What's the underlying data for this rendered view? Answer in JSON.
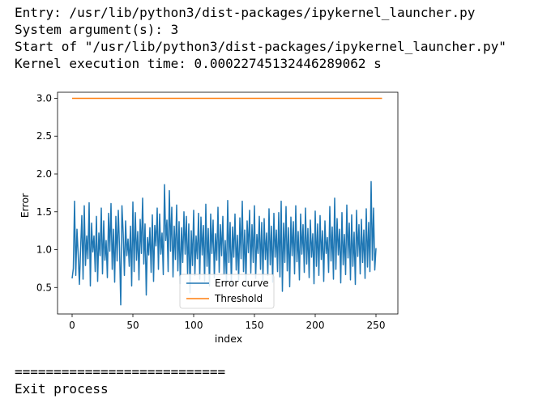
{
  "output": {
    "entry_line": "Entry: /usr/lib/python3/dist-packages/ipykernel_launcher.py",
    "args_line": "System argument(s): 3",
    "start_line": "Start of \"/usr/lib/python3/dist-packages/ipykernel_launcher.py\"",
    "time_line": "Kernel execution time: 0.00022745132446289062 s",
    "separator_line": "===========================",
    "exit_line": "Exit process"
  },
  "chart_data": {
    "type": "line",
    "xlabel": "index",
    "ylabel": "Error",
    "xlim": [
      -12,
      268
    ],
    "ylim": [
      0.15,
      3.08
    ],
    "xticks": [
      0,
      50,
      100,
      150,
      200,
      250
    ],
    "yticks": [
      0.5,
      1.0,
      1.5,
      2.0,
      2.5,
      3.0
    ],
    "xtick_labels": [
      "0",
      "50",
      "100",
      "150",
      "200",
      "250"
    ],
    "ytick_labels": [
      "0.5",
      "1.0",
      "1.5",
      "2.0",
      "2.5",
      "3.0"
    ],
    "legend_position": "lower center",
    "grid": false,
    "series": [
      {
        "name": "Error curve",
        "color": "#1f77b4",
        "x_start": 0,
        "x_step": 1,
        "values": [
          0.62,
          0.75,
          1.64,
          0.66,
          1.27,
          0.93,
          0.54,
          1.02,
          1.45,
          0.61,
          1.58,
          0.79,
          1.18,
          0.88,
          1.62,
          0.52,
          1.35,
          0.97,
          1.18,
          0.71,
          1.44,
          0.58,
          1.22,
          0.92,
          1.55,
          0.68,
          1.38,
          0.86,
          1.12,
          0.63,
          1.48,
          0.98,
          1.61,
          0.74,
          1.27,
          0.57,
          1.44,
          0.85,
          1.52,
          1.02,
          0.27,
          1.58,
          1.22,
          0.66,
          1.38,
          0.92,
          1.14,
          0.78,
          1.31,
          0.52,
          1.63,
          0.71,
          1.49,
          0.86,
          1.24,
          0.6,
          1.4,
          0.95,
          1.68,
          0.81,
          1.34,
          0.4,
          1.16,
          0.93,
          1.29,
          0.7,
          1.46,
          0.58,
          1.32,
          1.05,
          1.55,
          0.74,
          1.47,
          0.94,
          1.22,
          0.67,
          1.86,
          1.12,
          1.39,
          0.71,
          1.78,
          0.98,
          1.56,
          0.64,
          1.31,
          0.87,
          1.59,
          0.72,
          1.37,
          0.55,
          1.29,
          0.83,
          1.5,
          0.94,
          1.44,
          0.68,
          1.34,
          0.43,
          1.25,
          0.79,
          1.52,
          0.66,
          1.18,
          0.88,
          1.48,
          0.61,
          1.43,
          0.93,
          1.32,
          0.58,
          1.6,
          0.78,
          1.28,
          0.52,
          1.47,
          0.95,
          1.39,
          0.63,
          1.21,
          0.86,
          1.56,
          0.7,
          1.33,
          0.92,
          1.44,
          0.67,
          1.12,
          0.58,
          1.65,
          0.83,
          1.36,
          0.55,
          1.3,
          0.9,
          1.47,
          0.73,
          1.19,
          0.6,
          1.42,
          0.88,
          1.64,
          0.71,
          1.26,
          0.56,
          1.38,
          0.96,
          1.52,
          0.69,
          1.33,
          0.83,
          1.58,
          0.62,
          1.2,
          0.95,
          1.44,
          0.74,
          1.36,
          0.59,
          1.41,
          0.87,
          1.22,
          0.66,
          1.54,
          0.8,
          1.31,
          0.57,
          1.48,
          0.9,
          1.26,
          0.71,
          1.49,
          0.64,
          1.64,
          0.45,
          1.35,
          0.83,
          1.57,
          0.72,
          1.29,
          0.51,
          1.43,
          0.92,
          1.37,
          0.68,
          1.58,
          0.84,
          1.24,
          0.6,
          1.47,
          0.94,
          1.33,
          0.7,
          1.55,
          0.81,
          1.28,
          0.63,
          1.39,
          0.9,
          1.21,
          0.55,
          1.51,
          0.78,
          1.34,
          0.66,
          1.45,
          0.87,
          1.25,
          0.58,
          1.38,
          0.95,
          1.16,
          0.7,
          1.57,
          0.85,
          1.3,
          0.61,
          1.68,
          0.74,
          1.41,
          0.93,
          1.27,
          0.56,
          1.49,
          0.8,
          1.2,
          0.67,
          1.59,
          0.89,
          1.35,
          0.6,
          1.46,
          0.78,
          1.23,
          0.54,
          1.52,
          0.91,
          1.33,
          0.68,
          1.4,
          0.83,
          1.26,
          0.62,
          1.54,
          0.77,
          1.36,
          0.71,
          1.9,
          0.86,
          1.55,
          0.73,
          1.02
        ]
      },
      {
        "name": "Threshold",
        "color": "#ff7f0e",
        "x": [
          0,
          255
        ],
        "values": [
          3.0,
          3.0
        ]
      }
    ]
  }
}
